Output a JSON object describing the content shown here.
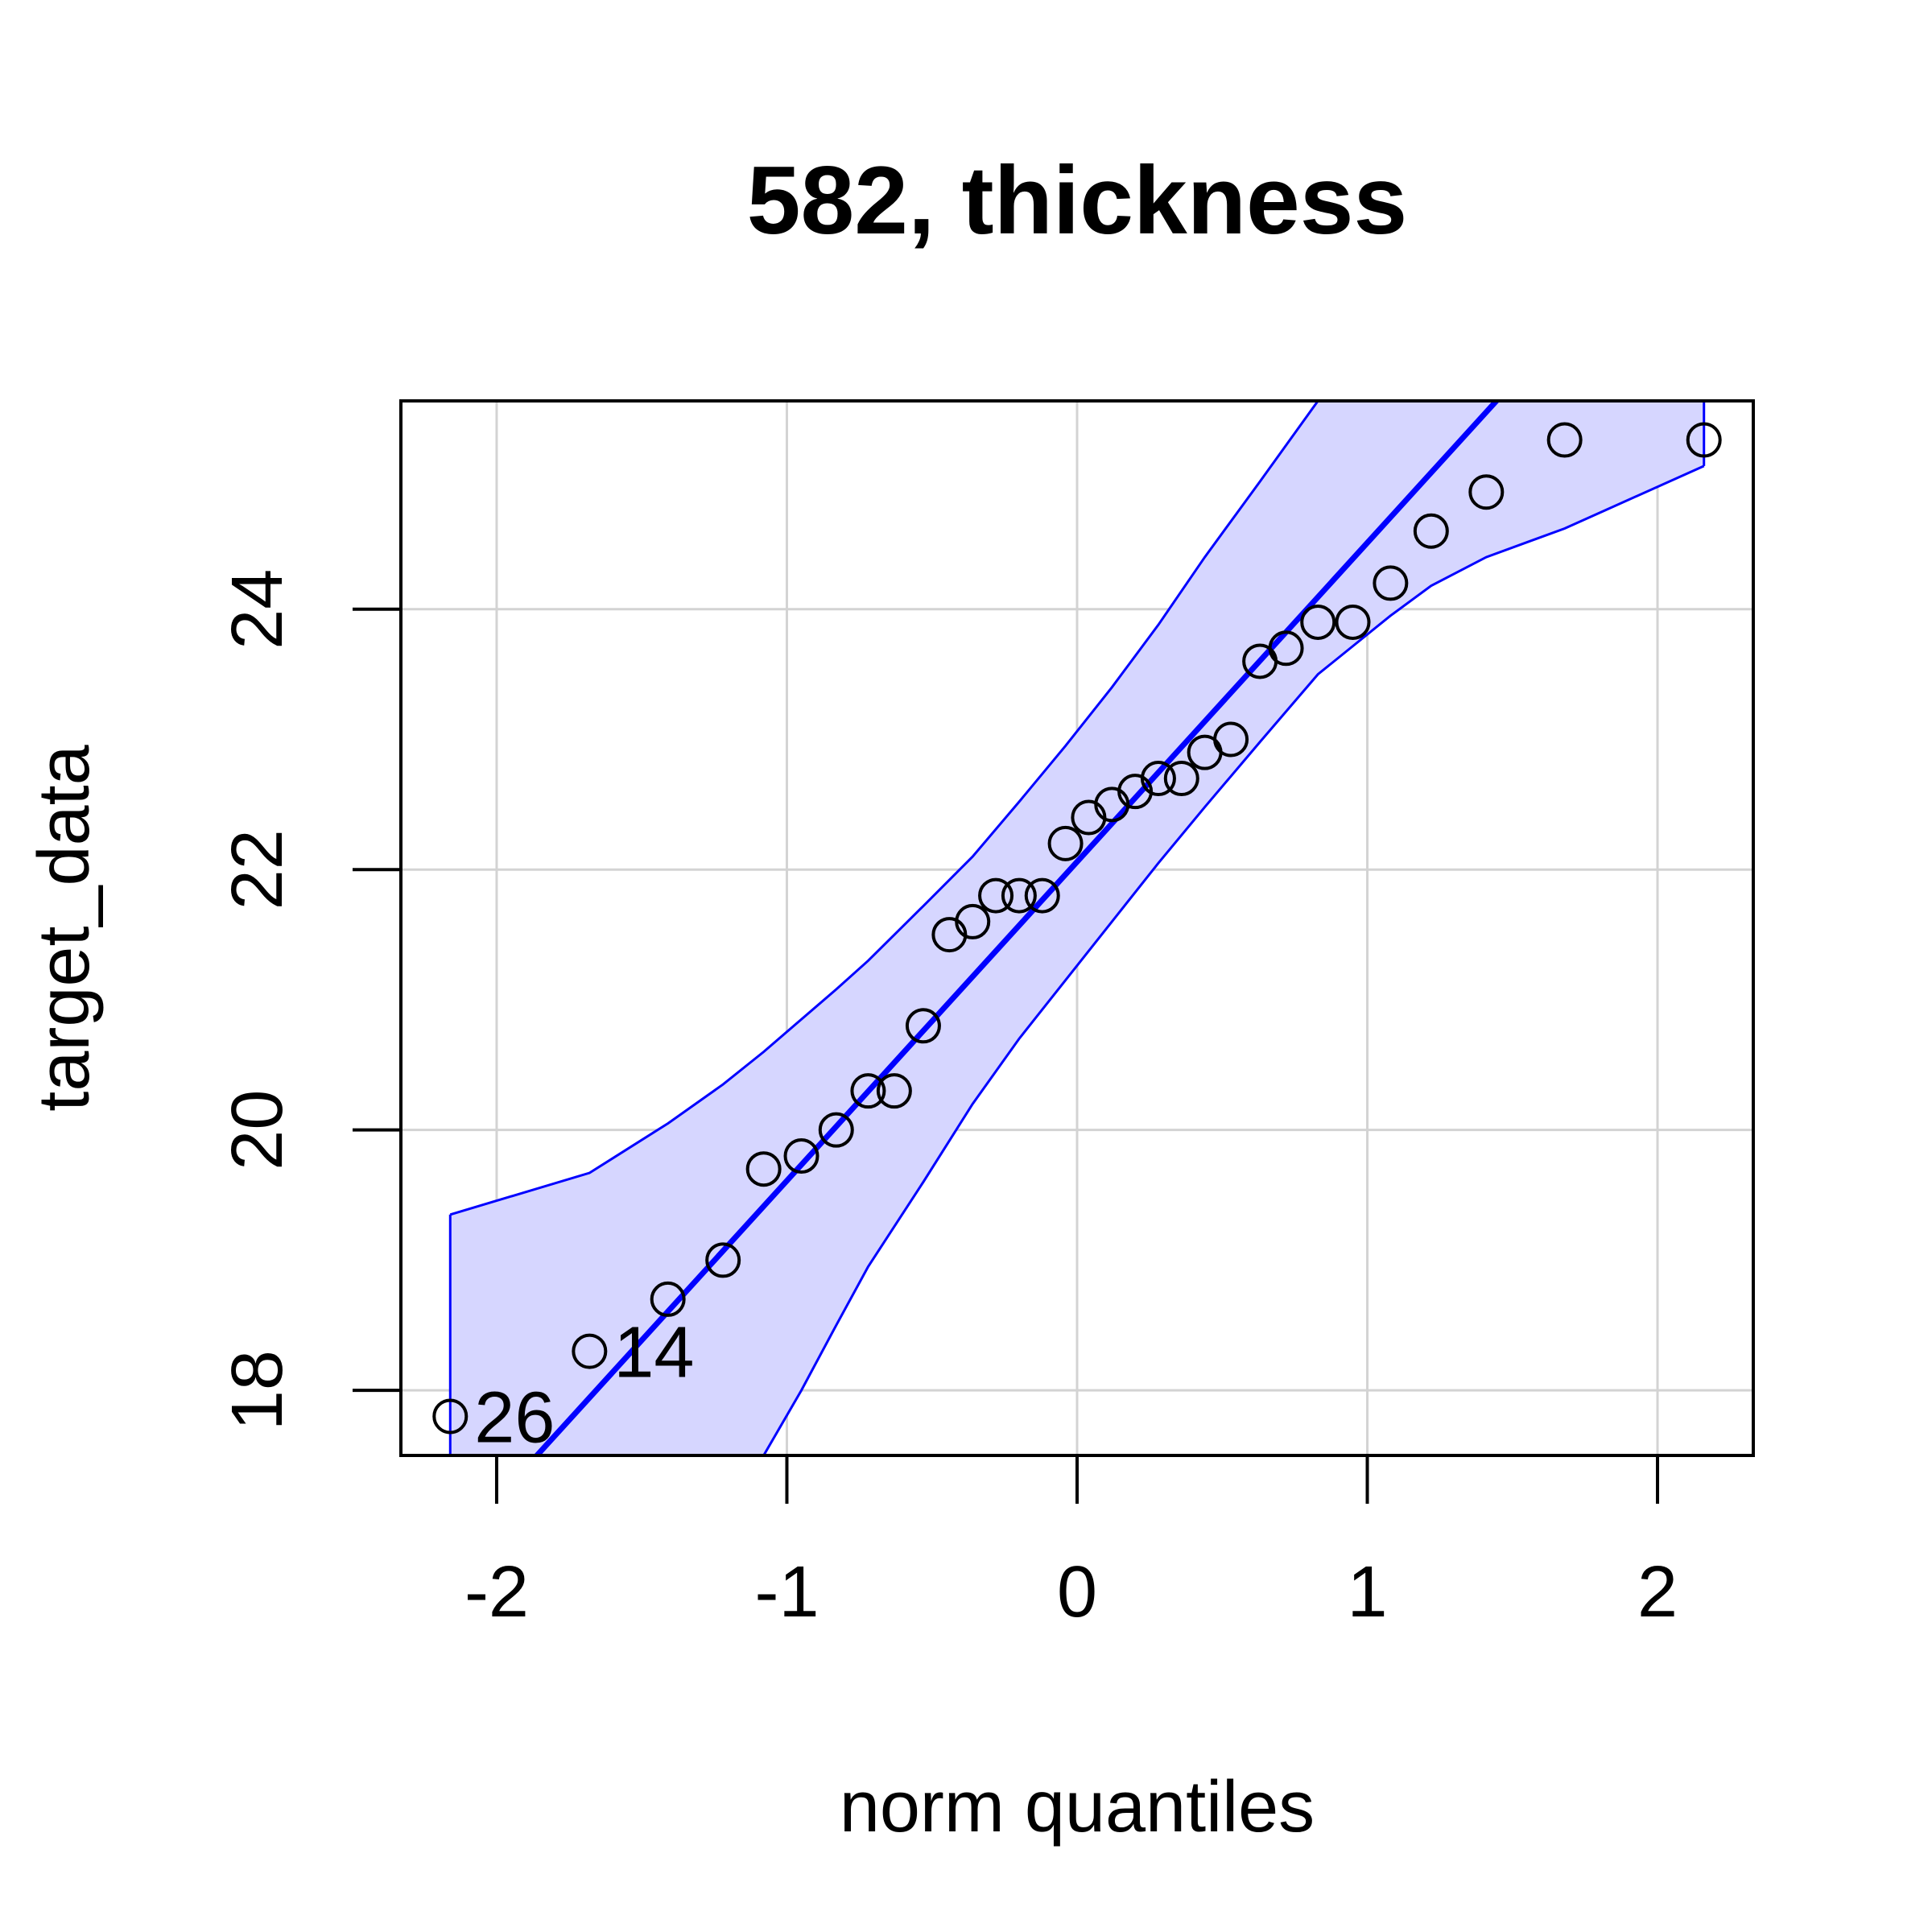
{
  "chart_data": {
    "type": "scatter",
    "title": "582, thickness",
    "xlabel": "norm quantiles",
    "ylabel": "target_data",
    "xlim": [
      -2.33,
      2.33
    ],
    "ylim": [
      17.5,
      25.6
    ],
    "x_ticks": [
      -2,
      -1,
      0,
      1,
      2
    ],
    "x_tick_labels": [
      "-2",
      "-1",
      "0",
      "1",
      "2"
    ],
    "y_ticks": [
      18,
      20,
      22,
      24
    ],
    "y_tick_labels": [
      "18",
      "20",
      "22",
      "24"
    ],
    "grid": true,
    "series": [
      {
        "marker": "open-circle",
        "points": [
          {
            "x": -2.16,
            "y": 17.8
          },
          {
            "x": -1.68,
            "y": 18.3
          },
          {
            "x": -1.41,
            "y": 18.7
          },
          {
            "x": -1.22,
            "y": 19.0
          },
          {
            "x": -1.08,
            "y": 19.7
          },
          {
            "x": -0.95,
            "y": 19.8
          },
          {
            "x": -0.83,
            "y": 20.0
          },
          {
            "x": -0.72,
            "y": 20.3
          },
          {
            "x": -0.63,
            "y": 20.3
          },
          {
            "x": -0.53,
            "y": 20.8
          },
          {
            "x": -0.44,
            "y": 21.5
          },
          {
            "x": -0.36,
            "y": 21.6
          },
          {
            "x": -0.28,
            "y": 21.8
          },
          {
            "x": -0.2,
            "y": 21.8
          },
          {
            "x": -0.12,
            "y": 21.8
          },
          {
            "x": -0.04,
            "y": 22.2
          },
          {
            "x": 0.04,
            "y": 22.4
          },
          {
            "x": 0.12,
            "y": 22.5
          },
          {
            "x": 0.2,
            "y": 22.6
          },
          {
            "x": 0.28,
            "y": 22.7
          },
          {
            "x": 0.36,
            "y": 22.7
          },
          {
            "x": 0.44,
            "y": 22.9
          },
          {
            "x": 0.53,
            "y": 23.0
          },
          {
            "x": 0.63,
            "y": 23.6
          },
          {
            "x": 0.72,
            "y": 23.7
          },
          {
            "x": 0.83,
            "y": 23.9
          },
          {
            "x": 0.95,
            "y": 23.9
          },
          {
            "x": 1.08,
            "y": 24.2
          },
          {
            "x": 1.22,
            "y": 24.6
          },
          {
            "x": 1.41,
            "y": 24.9
          },
          {
            "x": 1.68,
            "y": 25.3
          },
          {
            "x": 2.16,
            "y": 25.3
          }
        ]
      }
    ],
    "reference_line": {
      "intercept": 22.06,
      "slope": 2.45,
      "color": "#0000ff"
    },
    "envelope": {
      "x": [
        -2.16,
        -1.68,
        -1.41,
        -1.22,
        -1.08,
        -0.95,
        -0.83,
        -0.72,
        -0.53,
        -0.36,
        -0.2,
        -0.04,
        0.12,
        0.28,
        0.44,
        0.63,
        0.83,
        1.08,
        1.22,
        1.41,
        1.68,
        2.16
      ],
      "upper": [
        19.35,
        19.67,
        20.05,
        20.35,
        20.6,
        20.85,
        21.08,
        21.3,
        21.72,
        22.1,
        22.52,
        22.95,
        23.4,
        23.88,
        24.4,
        24.98,
        25.6,
        26.3,
        26.7,
        27.2,
        27.9,
        29.1
      ],
      "lower": [
        14.8,
        15.5,
        16.2,
        16.9,
        17.5,
        18.0,
        18.5,
        18.95,
        19.6,
        20.2,
        20.7,
        21.15,
        21.6,
        22.05,
        22.48,
        22.98,
        23.5,
        23.95,
        24.18,
        24.4,
        24.62,
        25.1
      ],
      "fill": "#d6d6ff",
      "stroke": "#0000ff"
    },
    "annotations": [
      {
        "text": "26",
        "x": -2.16,
        "y": 17.8
      },
      {
        "text": "14",
        "x": -1.68,
        "y": 18.3
      }
    ]
  }
}
